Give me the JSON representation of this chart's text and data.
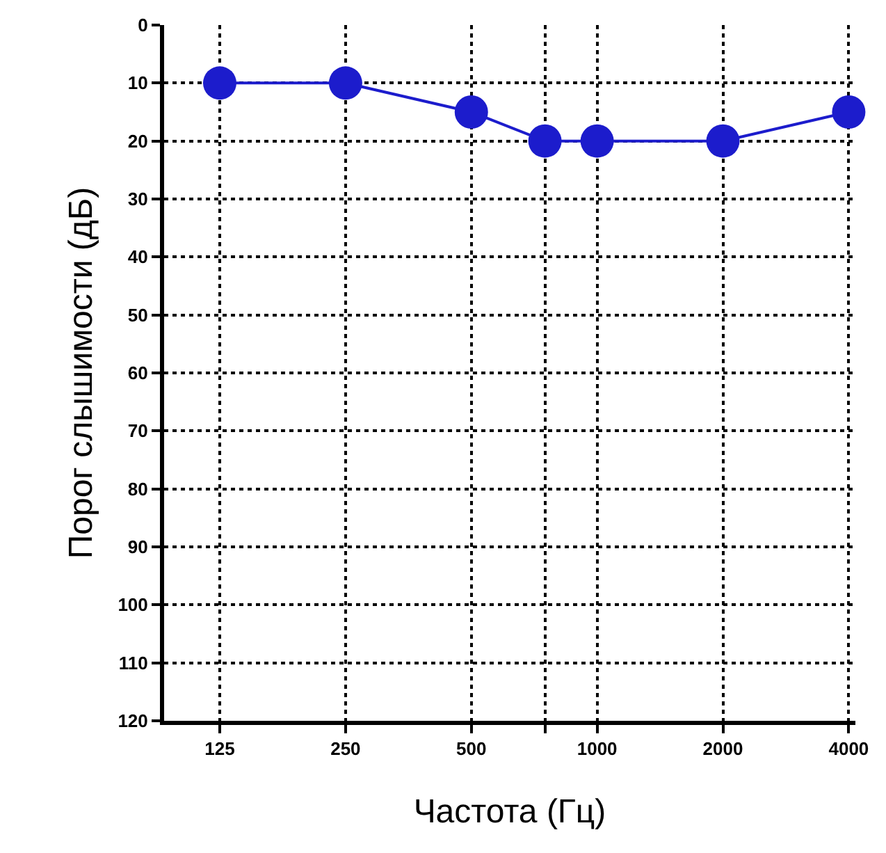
{
  "chart_data": {
    "type": "line",
    "xlabel": "Частота (Гц)",
    "ylabel": "Порог слышимости (дБ)",
    "x": [
      125,
      250,
      500,
      750,
      1000,
      2000,
      4000
    ],
    "series": [
      {
        "color": "#1c1ccc",
        "values": [
          10,
          10,
          15,
          20,
          20,
          20,
          15
        ]
      }
    ],
    "log": "x",
    "xlim": [
      92,
      4150
    ],
    "xticks": [
      125,
      250,
      500,
      {
        "value": 750,
        "label": null
      },
      1000,
      2000,
      4000
    ],
    "ylim": [
      120,
      0
    ],
    "yticks": [
      0,
      10,
      20,
      30,
      40,
      50,
      60,
      70,
      80,
      90,
      100,
      110,
      120
    ],
    "grid": true,
    "marker": "circle",
    "line_style": "solid",
    "legend": false
  }
}
